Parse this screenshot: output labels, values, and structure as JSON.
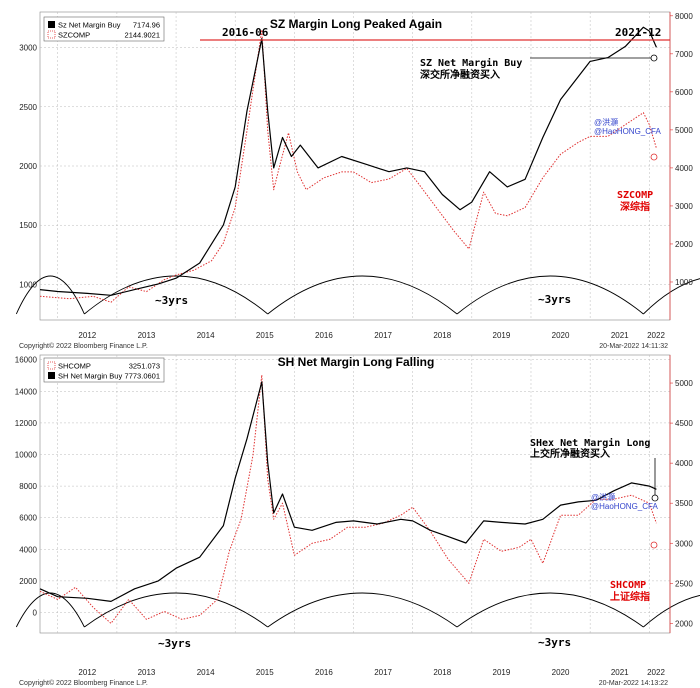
{
  "chart_data": [
    {
      "type": "line",
      "title": "SZ Margin Long Peaked Again",
      "x_ticks": [
        "2012",
        "2013",
        "2014",
        "2015",
        "2016",
        "2017",
        "2018",
        "2019",
        "2020",
        "2021",
        "2022"
      ],
      "left_axis": {
        "ticks": [
          1000,
          1500,
          2000,
          2500,
          3000
        ],
        "range": [
          700,
          3300
        ]
      },
      "right_axis": {
        "ticks": [
          1000,
          2000,
          3000,
          4000,
          5000,
          6000,
          7000,
          8000
        ],
        "range": [
          0,
          8100
        ]
      },
      "legend": [
        {
          "name": "Sz Net Margin Buy",
          "value": "7174.96",
          "color": "#000000"
        },
        {
          "name": "SZCOMP",
          "value": "2144.9021",
          "color": "#e03030"
        }
      ],
      "series": [
        {
          "name": "SZCOMP",
          "axis": "left",
          "color": "#e03030",
          "style": "dotted",
          "x": [
            2011.7,
            2012.2,
            2012.6,
            2012.9,
            2013.2,
            2013.5,
            2013.8,
            2014.0,
            2014.3,
            2014.6,
            2014.8,
            2015.0,
            2015.2,
            2015.45,
            2015.55,
            2015.65,
            2015.75,
            2015.9,
            2016.05,
            2016.2,
            2016.5,
            2016.8,
            2017.0,
            2017.3,
            2017.6,
            2017.9,
            2018.1,
            2018.4,
            2018.7,
            2018.95,
            2019.2,
            2019.4,
            2019.6,
            2019.9,
            2020.2,
            2020.5,
            2020.8,
            2021.0,
            2021.3,
            2021.6,
            2021.9,
            2022.0,
            2022.12
          ],
          "y": [
            900,
            880,
            900,
            850,
            980,
            940,
            1040,
            1080,
            1120,
            1200,
            1350,
            1650,
            2300,
            3150,
            2300,
            1800,
            2000,
            2280,
            1950,
            1800,
            1900,
            1950,
            1950,
            1860,
            1890,
            1980,
            1850,
            1650,
            1450,
            1300,
            1780,
            1600,
            1580,
            1650,
            1900,
            2100,
            2200,
            2250,
            2250,
            2350,
            2450,
            2350,
            2150
          ]
        },
        {
          "name": "Sz Net Margin Buy",
          "axis": "right",
          "color": "#000000",
          "style": "solid",
          "x": [
            2011.7,
            2012.0,
            2012.5,
            2012.9,
            2013.3,
            2013.7,
            2014.0,
            2014.4,
            2014.8,
            2015.0,
            2015.2,
            2015.45,
            2015.55,
            2015.65,
            2015.8,
            2015.95,
            2016.1,
            2016.4,
            2016.8,
            2017.2,
            2017.6,
            2017.9,
            2018.2,
            2018.5,
            2018.8,
            2019.0,
            2019.3,
            2019.6,
            2019.9,
            2020.2,
            2020.5,
            2020.8,
            2021.0,
            2021.3,
            2021.6,
            2021.9,
            2022.0,
            2022.12
          ],
          "y": [
            800,
            750,
            700,
            650,
            800,
            950,
            1100,
            1500,
            2500,
            3500,
            5500,
            7400,
            5500,
            4000,
            4800,
            4300,
            4600,
            4000,
            4300,
            4100,
            3900,
            4000,
            3900,
            3300,
            2900,
            3100,
            3900,
            3500,
            3700,
            4800,
            5800,
            6400,
            6800,
            6900,
            7200,
            7700,
            7600,
            7175
          ]
        }
      ],
      "annotations": [
        {
          "text": "2016-06",
          "color": "#000000"
        },
        {
          "text": "2021-12",
          "color": "#000000"
        },
        {
          "text": "SZ Net Margin Buy",
          "color": "#000000"
        },
        {
          "text": "深交所净融资买入",
          "color": "#000000"
        },
        {
          "text": "SZCOMP",
          "color": "#e00000"
        },
        {
          "text": "深综指",
          "color": "#e00000"
        },
        {
          "text": "~3yrs",
          "color": "#000000"
        },
        {
          "text": "~3yrs",
          "color": "#000000"
        }
      ],
      "watermark": [
        "@洪灝",
        "@HaoHONG_CFA"
      ],
      "footer": {
        "left": "Copyright© 2022 Bloomberg Finance L.P.",
        "right": "20-Mar-2022 14:11:32"
      }
    },
    {
      "type": "line",
      "title": "SH Net Margin Long Falling",
      "x_ticks": [
        "2012",
        "2013",
        "2014",
        "2015",
        "2016",
        "2017",
        "2018",
        "2019",
        "2020",
        "2021",
        "2022"
      ],
      "left_axis": {
        "ticks": [
          0,
          2000,
          4000,
          6000,
          8000,
          10000,
          12000,
          14000,
          16000
        ],
        "range": [
          -1300,
          16300
        ]
      },
      "right_axis": {
        "ticks": [
          2000,
          2500,
          3000,
          3500,
          4000,
          4500,
          5000
        ],
        "range": [
          1880,
          5350
        ]
      },
      "legend": [
        {
          "name": "SHCOMP",
          "value": "3251.073",
          "color": "#e03030"
        },
        {
          "name": "SH Net Margin Buy",
          "value": "7773.0601",
          "color": "#000000"
        }
      ],
      "series": [
        {
          "name": "SHCOMP",
          "axis": "right",
          "color": "#e03030",
          "style": "dotted",
          "x": [
            2011.7,
            2012.0,
            2012.3,
            2012.6,
            2012.9,
            2013.2,
            2013.5,
            2013.8,
            2014.1,
            2014.4,
            2014.7,
            2014.9,
            2015.1,
            2015.3,
            2015.45,
            2015.55,
            2015.65,
            2015.8,
            2016.0,
            2016.3,
            2016.6,
            2016.9,
            2017.2,
            2017.5,
            2017.8,
            2018.0,
            2018.3,
            2018.6,
            2018.95,
            2019.2,
            2019.5,
            2019.8,
            2020.0,
            2020.2,
            2020.5,
            2020.8,
            2021.1,
            2021.4,
            2021.7,
            2022.0,
            2022.12
          ],
          "y": [
            2400,
            2300,
            2450,
            2200,
            2000,
            2300,
            2050,
            2150,
            2050,
            2100,
            2300,
            2900,
            3300,
            4100,
            5100,
            3800,
            3300,
            3500,
            2850,
            3000,
            3050,
            3200,
            3200,
            3250,
            3350,
            3450,
            3150,
            2800,
            2500,
            3050,
            2900,
            2950,
            3050,
            2750,
            3350,
            3350,
            3550,
            3550,
            3600,
            3500,
            3250
          ]
        },
        {
          "name": "SH Net Margin Buy",
          "axis": "left",
          "color": "#000000",
          "style": "solid",
          "x": [
            2011.7,
            2012.0,
            2012.5,
            2012.9,
            2013.3,
            2013.7,
            2014.0,
            2014.4,
            2014.8,
            2015.0,
            2015.2,
            2015.45,
            2015.55,
            2015.65,
            2015.8,
            2016.0,
            2016.3,
            2016.7,
            2017.0,
            2017.4,
            2017.8,
            2018.0,
            2018.3,
            2018.6,
            2018.9,
            2019.2,
            2019.5,
            2019.9,
            2020.2,
            2020.5,
            2020.8,
            2021.1,
            2021.4,
            2021.7,
            2022.0,
            2022.12
          ],
          "y": [
            1500,
            1000,
            900,
            700,
            1500,
            2000,
            2800,
            3500,
            5500,
            8500,
            11000,
            14600,
            9500,
            6300,
            7500,
            5400,
            5200,
            5700,
            5800,
            5600,
            5900,
            5800,
            5200,
            4800,
            4400,
            5800,
            5700,
            5600,
            5900,
            6800,
            7000,
            7100,
            7700,
            8200,
            8000,
            7800
          ]
        }
      ],
      "annotations": [
        {
          "text": "SHex Net Margin Long",
          "color": "#000000"
        },
        {
          "text": "上交所净融资买入",
          "color": "#000000"
        },
        {
          "text": "SHCOMP",
          "color": "#e00000"
        },
        {
          "text": "上证综指",
          "color": "#e00000"
        },
        {
          "text": "~3yrs",
          "color": "#000000"
        },
        {
          "text": "~3yrs",
          "color": "#000000"
        }
      ],
      "watermark": [
        "@洪灝",
        "@HaoHONG_CFA"
      ],
      "footer": {
        "left": "Copyright© 2022 Bloomberg Finance L.P.",
        "right": "20-Mar-2022 14:13:22"
      }
    }
  ]
}
